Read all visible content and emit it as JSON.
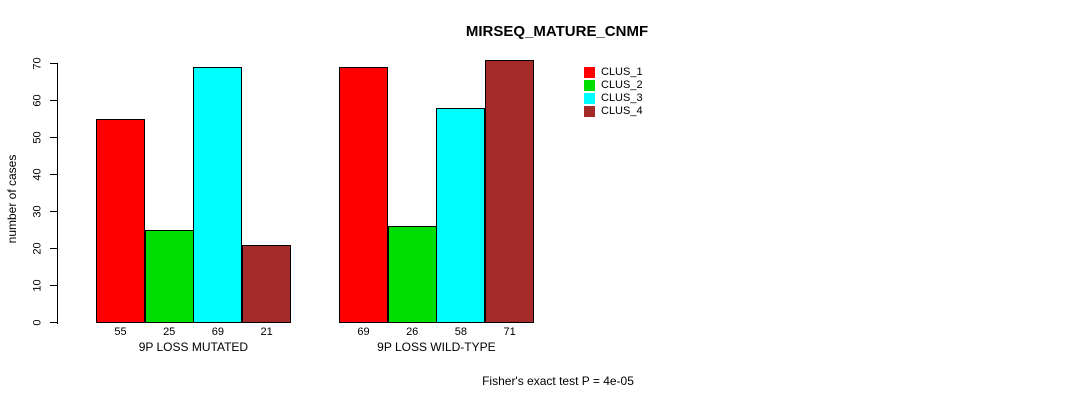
{
  "chart_data": {
    "type": "bar",
    "title": "MIRSEQ_MATURE_CNMF",
    "ylabel": "number of cases",
    "xlabel": "",
    "ylim": [
      0,
      70
    ],
    "yticks": [
      0,
      10,
      20,
      30,
      40,
      50,
      60,
      70
    ],
    "grid": false,
    "legend_position": "top-right",
    "categories": [
      "9P LOSS MUTATED",
      "9P LOSS WILD-TYPE"
    ],
    "series": [
      {
        "name": "CLUS_1",
        "color": "#ff0000",
        "values": [
          55,
          69
        ]
      },
      {
        "name": "CLUS_2",
        "color": "#00dd00",
        "values": [
          25,
          26
        ]
      },
      {
        "name": "CLUS_3",
        "color": "#00ffff",
        "values": [
          69,
          58
        ]
      },
      {
        "name": "CLUS_4",
        "color": "#a52a2a",
        "values": [
          21,
          71
        ]
      }
    ],
    "bar_value_labels": [
      [
        55,
        25,
        69,
        21
      ],
      [
        69,
        26,
        58,
        71
      ]
    ],
    "annotation": "Fisher's exact test P = 4e-05"
  }
}
